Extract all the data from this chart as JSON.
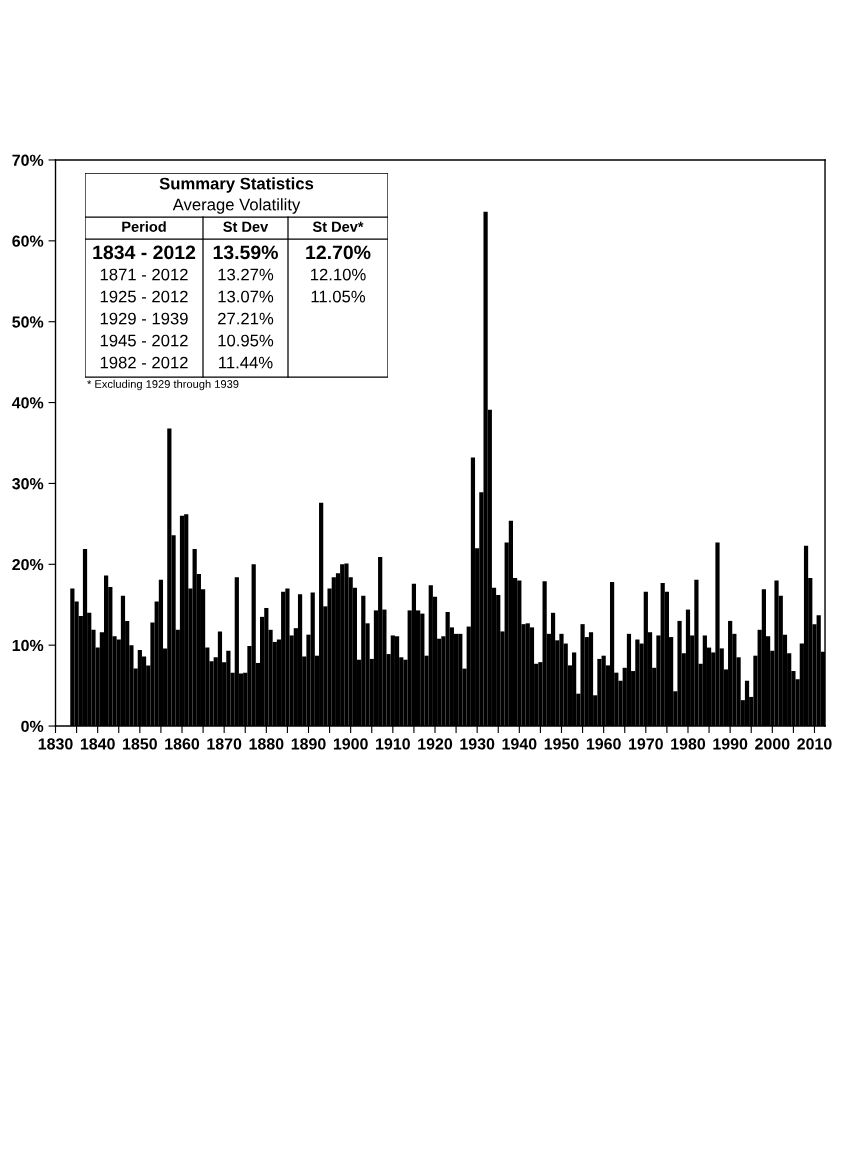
{
  "chart_data": [
    {
      "type": "bar",
      "color": "#000000",
      "x": [
        1834,
        1835,
        1836,
        1837,
        1838,
        1839,
        1840,
        1841,
        1842,
        1843,
        1844,
        1845,
        1846,
        1847,
        1848,
        1849,
        1850,
        1851,
        1852,
        1853,
        1854,
        1855,
        1856,
        1857,
        1858,
        1859,
        1860,
        1861,
        1862,
        1863,
        1864,
        1865,
        1866,
        1867,
        1868,
        1869,
        1870,
        1871,
        1872,
        1873,
        1874,
        1875,
        1876,
        1877,
        1878,
        1879,
        1880,
        1881,
        1882,
        1883,
        1884,
        1885,
        1886,
        1887,
        1888,
        1889,
        1890,
        1891,
        1892,
        1893,
        1894,
        1895,
        1896,
        1897,
        1898,
        1899,
        1900,
        1901,
        1902,
        1903,
        1904,
        1905,
        1906,
        1907,
        1908,
        1909,
        1910,
        1911,
        1912,
        1913,
        1914,
        1915,
        1916,
        1917,
        1918,
        1919,
        1920,
        1921,
        1922,
        1923,
        1924,
        1925,
        1926,
        1927,
        1928,
        1929,
        1930,
        1931,
        1932,
        1933,
        1934,
        1935,
        1936,
        1937,
        1938,
        1939,
        1940,
        1941,
        1942,
        1943,
        1944,
        1945,
        1946,
        1947,
        1948,
        1949,
        1950,
        1951,
        1952,
        1953,
        1954,
        1955,
        1956,
        1957,
        1958,
        1959,
        1960,
        1961,
        1962,
        1963,
        1964,
        1965,
        1966,
        1967,
        1968,
        1969,
        1970,
        1971,
        1972,
        1973,
        1974,
        1975,
        1976,
        1977,
        1978,
        1979,
        1980,
        1981,
        1982,
        1983,
        1984,
        1985,
        1986,
        1987,
        1988,
        1989,
        1990,
        1991,
        1992,
        1993,
        1994,
        1995,
        1996,
        1997,
        1998,
        1999,
        2000,
        2001,
        2002,
        2003,
        2004,
        2005,
        2006,
        2007,
        2008,
        2009,
        2010,
        2011,
        2012
      ],
      "values": [
        17.0,
        15.4,
        13.6,
        21.9,
        14.0,
        11.9,
        9.7,
        11.6,
        18.6,
        17.2,
        11.1,
        10.7,
        16.1,
        13.0,
        10.0,
        7.1,
        9.4,
        8.6,
        7.5,
        12.8,
        15.4,
        18.1,
        9.6,
        36.8,
        23.6,
        11.9,
        26.0,
        26.2,
        17.0,
        21.9,
        18.8,
        16.9,
        9.7,
        8.0,
        8.5,
        11.7,
        7.9,
        9.3,
        6.6,
        18.4,
        6.5,
        6.6,
        9.9,
        20.0,
        7.8,
        13.5,
        14.6,
        11.9,
        10.4,
        10.7,
        16.6,
        17.0,
        11.2,
        12.1,
        16.3,
        8.6,
        11.3,
        16.5,
        8.7,
        27.6,
        14.8,
        17.0,
        18.4,
        18.9,
        20.0,
        20.1,
        18.4,
        17.1,
        8.2,
        16.1,
        12.7,
        8.3,
        14.3,
        20.9,
        14.4,
        8.9,
        11.2,
        11.1,
        8.5,
        8.2,
        14.3,
        17.6,
        14.3,
        13.9,
        8.7,
        17.4,
        16.0,
        10.8,
        11.1,
        14.1,
        12.2,
        11.4,
        11.4,
        7.1,
        12.3,
        33.2,
        22.0,
        28.9,
        63.6,
        39.1,
        17.1,
        16.2,
        11.7,
        22.7,
        25.4,
        18.3,
        18.0,
        12.6,
        12.7,
        12.2,
        7.7,
        7.9,
        17.9,
        11.4,
        14.0,
        10.6,
        11.4,
        10.2,
        7.5,
        9.1,
        4.0,
        12.6,
        11.0,
        11.6,
        3.8,
        8.3,
        8.7,
        7.5,
        17.8,
        6.6,
        5.6,
        7.2,
        11.4,
        6.8,
        10.7,
        10.2,
        16.6,
        11.6,
        7.2,
        11.2,
        17.7,
        16.6,
        11.0,
        4.3,
        13.0,
        9.0,
        14.4,
        11.2,
        18.1,
        7.7,
        11.2,
        9.7,
        9.1,
        22.7,
        9.6,
        7.0,
        13.0,
        11.4,
        8.5,
        3.2,
        5.6,
        3.6,
        8.7,
        11.9,
        16.9,
        11.1,
        9.3,
        18.0,
        16.1,
        11.3,
        9.0,
        6.8,
        5.8,
        10.2,
        22.3,
        18.3,
        12.6,
        13.7,
        9.2
      ],
      "xlim": [
        1830,
        2012.5
      ],
      "xticks": [
        1830,
        {
          "value": 1835,
          "label": null
        },
        1840,
        {
          "value": 1845,
          "label": null
        },
        1850,
        {
          "value": 1855,
          "label": null
        },
        1860,
        {
          "value": 1865,
          "label": null
        },
        1870,
        {
          "value": 1875,
          "label": null
        },
        1880,
        {
          "value": 1885,
          "label": null
        },
        1890,
        {
          "value": 1895,
          "label": null
        },
        1900,
        {
          "value": 1905,
          "label": null
        },
        1910,
        {
          "value": 1915,
          "label": null
        },
        1920,
        {
          "value": 1925,
          "label": null
        },
        1930,
        {
          "value": 1935,
          "label": null
        },
        1940,
        {
          "value": 1945,
          "label": null
        },
        1950,
        {
          "value": 1955,
          "label": null
        },
        1960,
        {
          "value": 1965,
          "label": null
        },
        1970,
        {
          "value": 1975,
          "label": null
        },
        1980,
        {
          "value": 1985,
          "label": null
        },
        1990,
        {
          "value": 1995,
          "label": null
        },
        2000,
        {
          "value": 2005,
          "label": null
        },
        2010
      ],
      "ylim": [
        0,
        70
      ],
      "yticks": [
        {
          "value": 0,
          "label": "0%"
        },
        {
          "value": 10,
          "label": "10%"
        },
        {
          "value": 20,
          "label": "20%"
        },
        {
          "value": 30,
          "label": "30%"
        },
        {
          "value": 40,
          "label": "40%"
        },
        {
          "value": 50,
          "label": "50%"
        },
        {
          "value": 60,
          "label": "60%"
        },
        {
          "value": 70,
          "label": "70%"
        }
      ],
      "grid": false
    },
    {
      "type": "other",
      "title": "Summary Statistics",
      "subtitle": "Average Volatility",
      "xlabel": "Period",
      "categories": [
        "1834 - 2012",
        "1871 - 2012",
        "1925 - 2012",
        "1929 - 1939",
        "1945 - 2012",
        "1982 - 2012"
      ],
      "series": [
        {
          "name": "St Dev",
          "values": [
            13.59,
            13.27,
            13.07,
            27.21,
            10.95,
            11.44
          ],
          "value_labels": [
            "13.59%",
            "13.27%",
            "13.07%",
            "27.21%",
            "10.95%",
            "11.44%"
          ]
        },
        {
          "name": "St Dev*",
          "values": [
            12.7,
            12.1,
            11.05,
            null,
            null,
            null
          ],
          "value_labels": [
            "12.70%",
            "12.10%",
            "11.05%",
            null,
            null,
            null
          ]
        }
      ],
      "annotations": [
        "* Excluding 1929 through 1939"
      ]
    }
  ]
}
